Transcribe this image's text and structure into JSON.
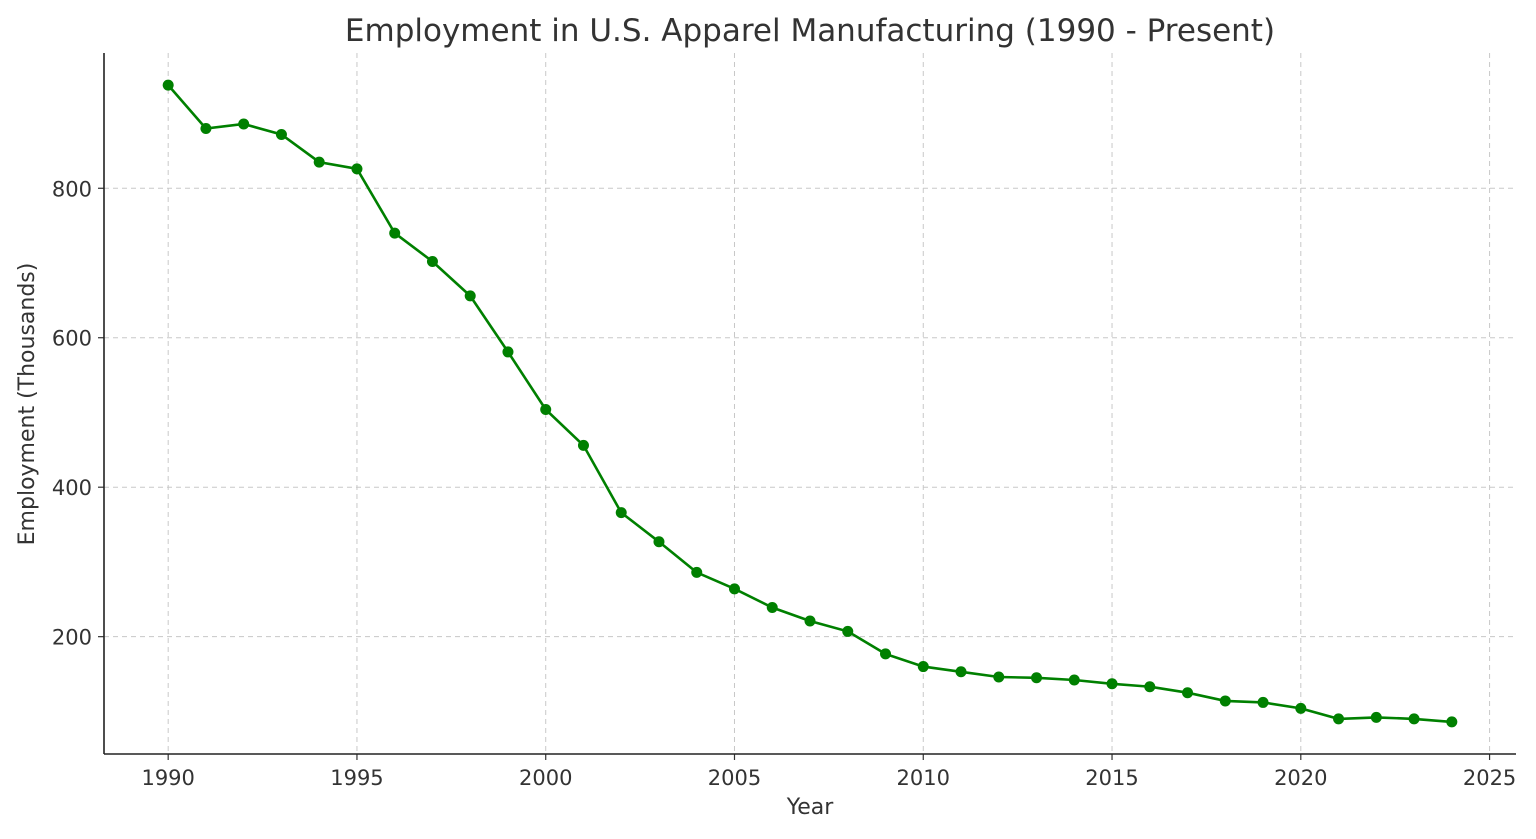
{
  "chart_data": {
    "type": "line",
    "title": "Employment in U.S. Apparel Manufacturing (1990 - Present)",
    "xlabel": "Year",
    "ylabel": "Employment (Thousands)",
    "xlim": [
      1988.3,
      2025.7
    ],
    "ylim": [
      43,
      981
    ],
    "xticks": [
      1990,
      1995,
      2000,
      2005,
      2010,
      2015,
      2020,
      2025
    ],
    "yticks": [
      200,
      400,
      600,
      800
    ],
    "grid": true,
    "legend": "none",
    "marker": "circle",
    "color": "#008000",
    "x": [
      1990,
      1991,
      1992,
      1993,
      1994,
      1995,
      1996,
      1997,
      1998,
      1999,
      2000,
      2001,
      2002,
      2003,
      2004,
      2005,
      2006,
      2007,
      2008,
      2009,
      2010,
      2011,
      2012,
      2013,
      2014,
      2015,
      2016,
      2017,
      2018,
      2019,
      2020,
      2021,
      2022,
      2023,
      2024
    ],
    "values": [
      938,
      880,
      886,
      872,
      835,
      826,
      740,
      702,
      656,
      581,
      504,
      456,
      366,
      327,
      286,
      264,
      239,
      221,
      207,
      177,
      160,
      153,
      146,
      145,
      142,
      137,
      133,
      125,
      114,
      112,
      104,
      90,
      92,
      90,
      86
    ]
  }
}
